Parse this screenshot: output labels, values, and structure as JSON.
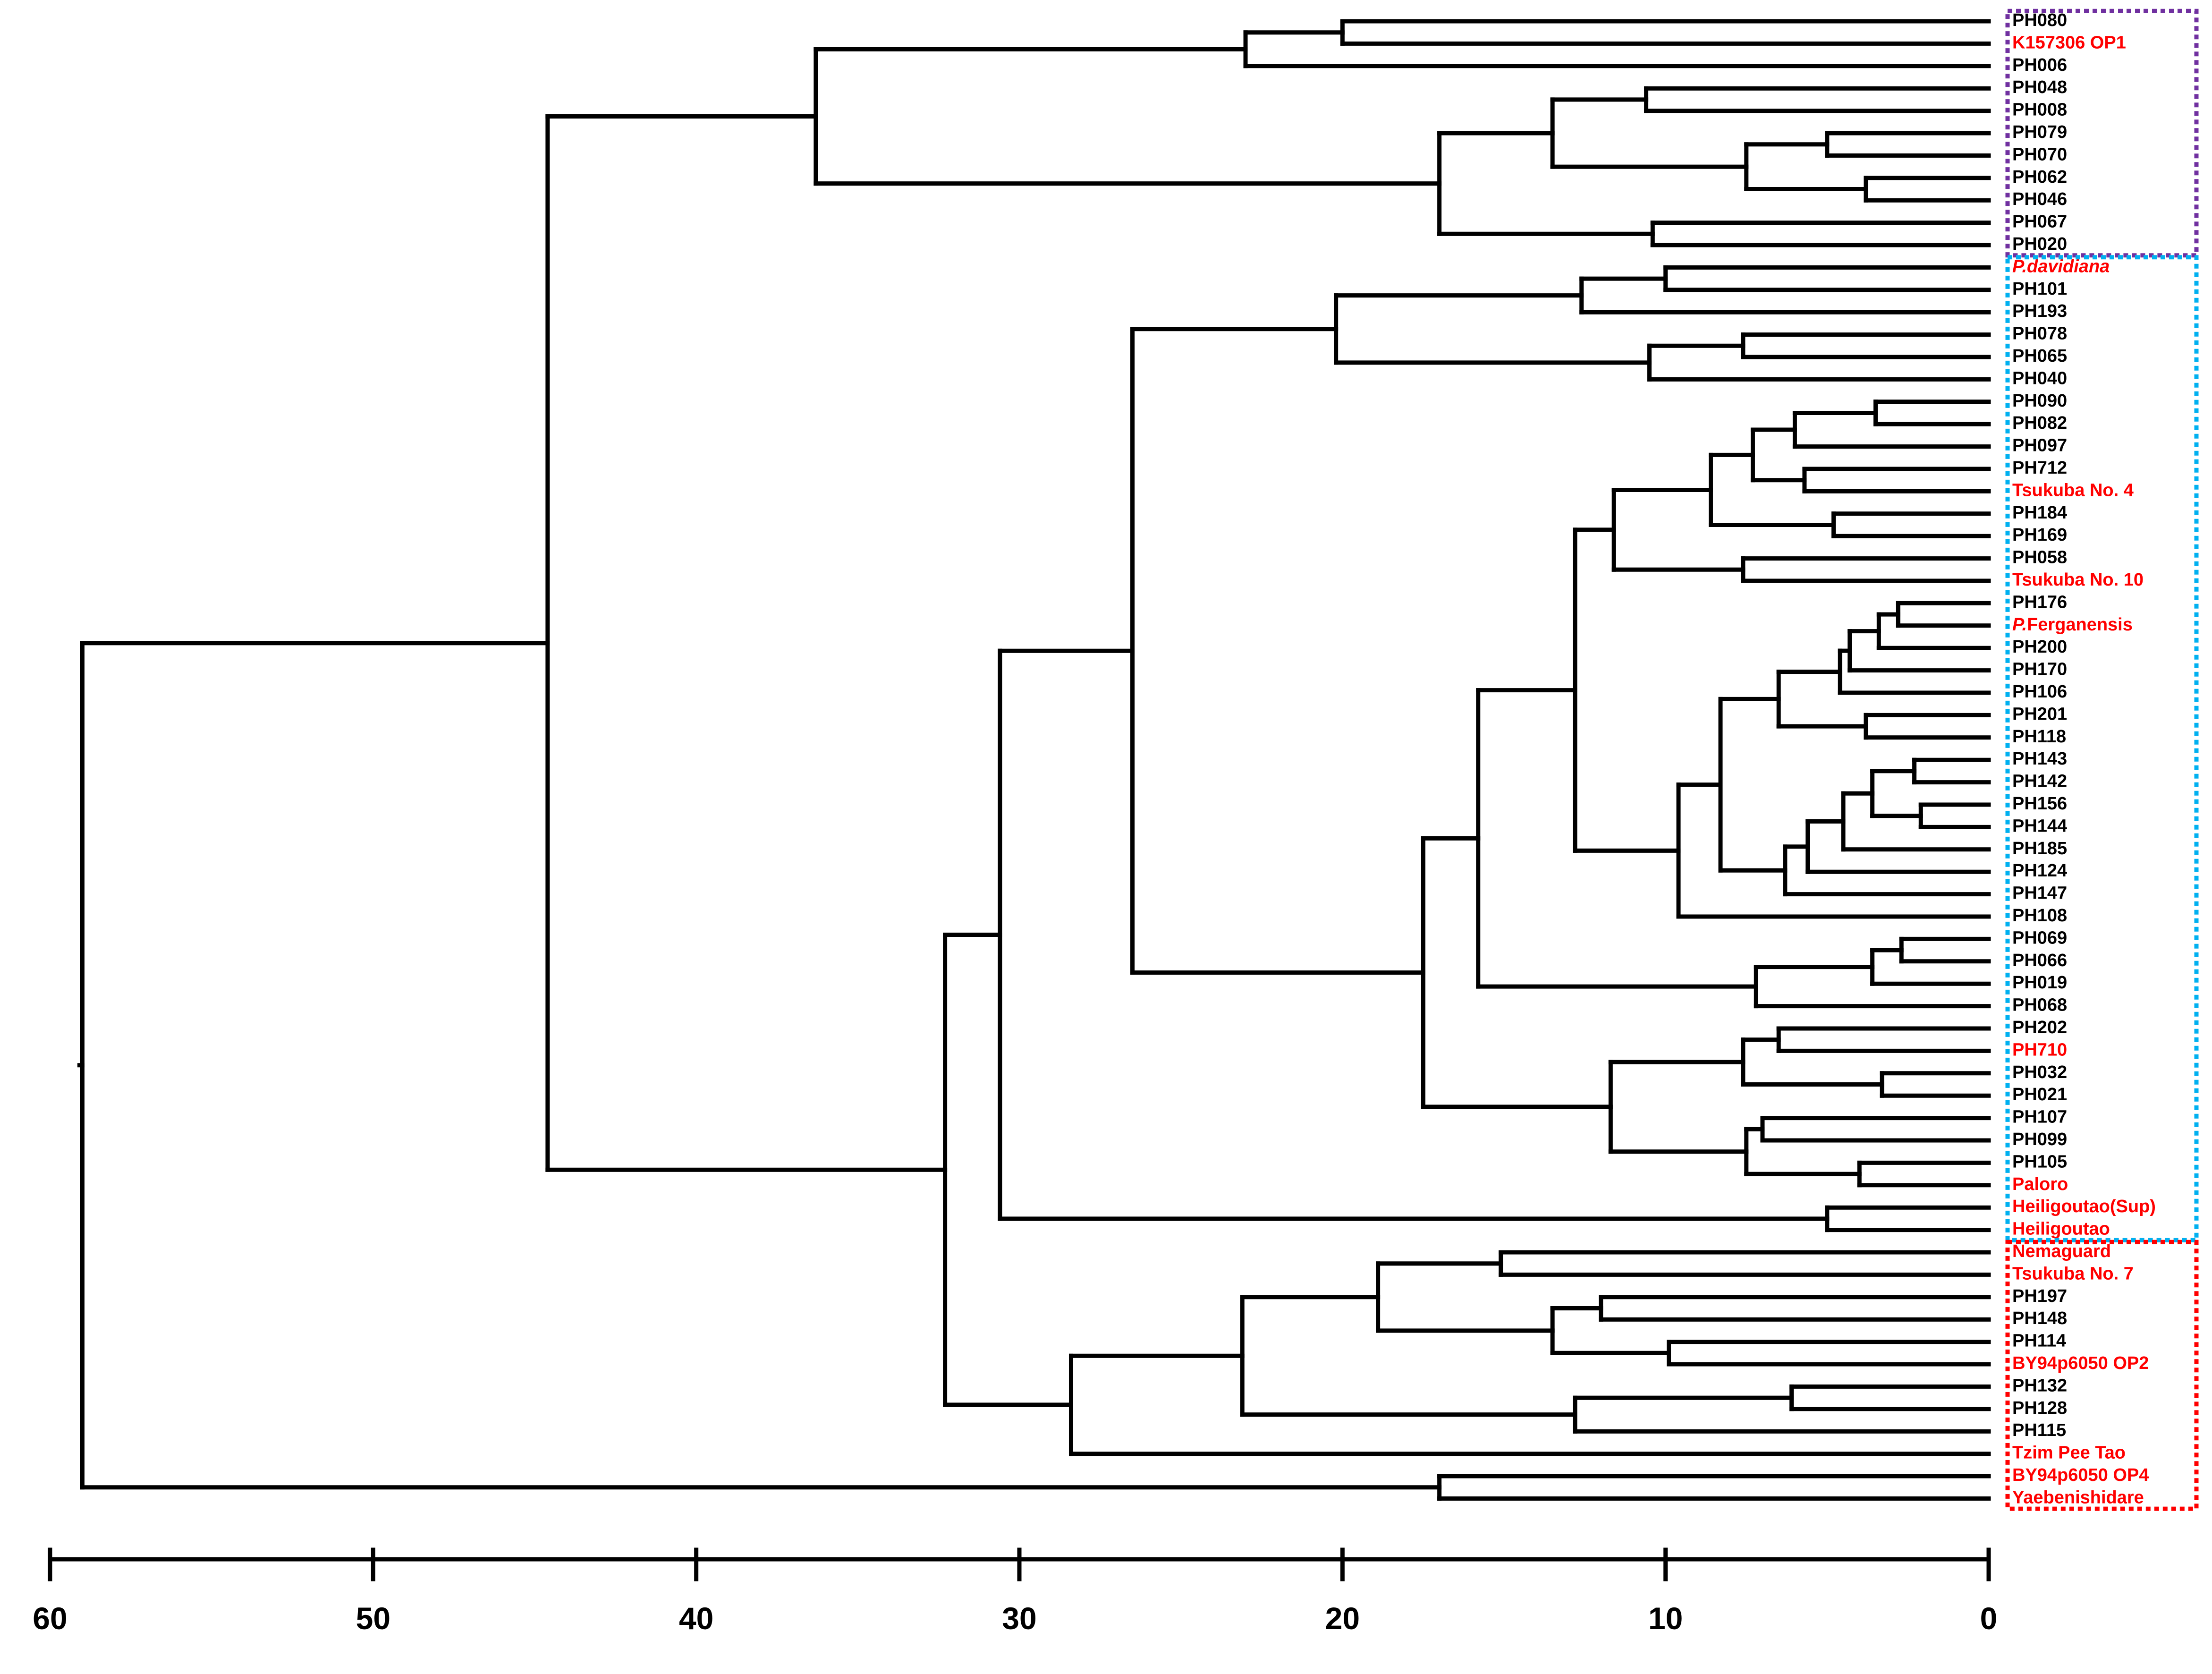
{
  "colors": {
    "black_label": "#000000",
    "red_label": "#ff0000",
    "purple_box": "#7030a0",
    "blue_box": "#00b0f0",
    "red_box": "#ff0000"
  },
  "axis": {
    "ticks": [
      60,
      50,
      40,
      30,
      20,
      10,
      0
    ],
    "tick_labels": [
      "60",
      "50",
      "40",
      "30",
      "20",
      "10",
      "0"
    ],
    "min": 0,
    "max": 60
  },
  "leaves": [
    {
      "label": "PH080",
      "color": "black"
    },
    {
      "label": "K157306 OP1",
      "color": "red"
    },
    {
      "label": "PH006",
      "color": "black"
    },
    {
      "label": "PH048",
      "color": "black"
    },
    {
      "label": "PH008",
      "color": "black"
    },
    {
      "label": "PH079",
      "color": "black"
    },
    {
      "label": "PH070",
      "color": "black"
    },
    {
      "label": "PH062",
      "color": "black"
    },
    {
      "label": "PH046",
      "color": "black"
    },
    {
      "label": "PH067",
      "color": "black"
    },
    {
      "label": "PH020",
      "color": "black"
    },
    {
      "label": "P.davidiana",
      "color": "red",
      "italic": true
    },
    {
      "label": "PH101",
      "color": "black"
    },
    {
      "label": "PH193",
      "color": "black"
    },
    {
      "label": "PH078",
      "color": "black"
    },
    {
      "label": "PH065",
      "color": "black"
    },
    {
      "label": "PH040",
      "color": "black"
    },
    {
      "label": "PH090",
      "color": "black"
    },
    {
      "label": "PH082",
      "color": "black"
    },
    {
      "label": "PH097",
      "color": "black"
    },
    {
      "label": "PH712",
      "color": "black"
    },
    {
      "label": "Tsukuba No. 4",
      "color": "red"
    },
    {
      "label": "PH184",
      "color": "black"
    },
    {
      "label": "PH169",
      "color": "black"
    },
    {
      "label": "PH058",
      "color": "black"
    },
    {
      "label": "Tsukuba No. 10",
      "color": "red"
    },
    {
      "label": "PH176",
      "color": "black"
    },
    {
      "label": "P.Ferganensis",
      "color": "red",
      "italic_prefix": true
    },
    {
      "label": "PH200",
      "color": "black"
    },
    {
      "label": "PH170",
      "color": "black"
    },
    {
      "label": "PH106",
      "color": "black"
    },
    {
      "label": "PH201",
      "color": "black"
    },
    {
      "label": "PH118",
      "color": "black"
    },
    {
      "label": "PH143",
      "color": "black"
    },
    {
      "label": "PH142",
      "color": "black"
    },
    {
      "label": "PH156",
      "color": "black"
    },
    {
      "label": "PH144",
      "color": "black"
    },
    {
      "label": "PH185",
      "color": "black"
    },
    {
      "label": "PH124",
      "color": "black"
    },
    {
      "label": "PH147",
      "color": "black"
    },
    {
      "label": "PH108",
      "color": "black"
    },
    {
      "label": "PH069",
      "color": "black"
    },
    {
      "label": "PH066",
      "color": "black"
    },
    {
      "label": "PH019",
      "color": "black"
    },
    {
      "label": "PH068",
      "color": "black"
    },
    {
      "label": "PH202",
      "color": "black"
    },
    {
      "label": "PH710",
      "color": "red"
    },
    {
      "label": "PH032",
      "color": "black"
    },
    {
      "label": "PH021",
      "color": "black"
    },
    {
      "label": "PH107",
      "color": "black"
    },
    {
      "label": "PH099",
      "color": "black"
    },
    {
      "label": "PH105",
      "color": "black"
    },
    {
      "label": "Paloro",
      "color": "red"
    },
    {
      "label": "Heiligoutao(Sup)",
      "color": "red"
    },
    {
      "label": "Heiligoutao",
      "color": "red"
    },
    {
      "label": "Nemaguard",
      "color": "red"
    },
    {
      "label": "Tsukuba No. 7",
      "color": "red"
    },
    {
      "label": "PH197",
      "color": "black"
    },
    {
      "label": "PH148",
      "color": "black"
    },
    {
      "label": "PH114",
      "color": "black"
    },
    {
      "label": "BY94p6050 OP2",
      "color": "red"
    },
    {
      "label": "PH132",
      "color": "black"
    },
    {
      "label": "PH128",
      "color": "black"
    },
    {
      "label": "PH115",
      "color": "black"
    },
    {
      "label": "Tzim Pee Tao",
      "color": "red"
    },
    {
      "label": "BY94p6050 OP4",
      "color": "red"
    },
    {
      "label": "Yaebenishidare",
      "color": "red"
    }
  ],
  "tree": {
    "h": 59,
    "c": [
      {
        "h": 44.6,
        "c": [
          {
            "h": 36.3,
            "c": [
              {
                "h": 23,
                "c": [
                  {
                    "h": 20,
                    "c": [
                      0,
                      1
                    ]
                  },
                  2
                ]
              },
              {
                "h": 17,
                "c": [
                  {
                    "h": 13.5,
                    "c": [
                      {
                        "h": 10.6,
                        "c": [
                          3,
                          4
                        ]
                      },
                      {
                        "h": 7.5,
                        "c": [
                          {
                            "h": 5,
                            "c": [
                              5,
                              6
                            ]
                          },
                          {
                            "h": 3.8,
                            "c": [
                              7,
                              8
                            ]
                          }
                        ]
                      }
                    ]
                  },
                  {
                    "h": 10.4,
                    "c": [
                      9,
                      10
                    ]
                  }
                ]
              }
            ]
          },
          {
            "h": 32.3,
            "c": [
              {
                "h": 30.6,
                "c": [
                  {
                    "h": 26.5,
                    "c": [
                      {
                        "h": 20.2,
                        "c": [
                          {
                            "h": 12.6,
                            "c": [
                              {
                                "h": 10,
                                "c": [
                                  11,
                                  12
                                ]
                              },
                              13
                            ]
                          },
                          {
                            "h": 10.5,
                            "c": [
                              {
                                "h": 7.6,
                                "c": [
                                  14,
                                  15
                                ]
                              },
                              16
                            ]
                          }
                        ]
                      },
                      {
                        "h": 17.5,
                        "c": [
                          {
                            "h": 15.8,
                            "c": [
                              {
                                "h": 12.8,
                                "c": [
                                  {
                                    "h": 11.6,
                                    "c": [
                                      {
                                        "h": 8.6,
                                        "c": [
                                          {
                                            "h": 7.3,
                                            "c": [
                                              {
                                                "h": 6,
                                                "c": [
                                                  {
                                                    "h": 3.5,
                                                    "c": [
                                                      17,
                                                      18
                                                    ]
                                                  },
                                                  19
                                                ]
                                              },
                                              {
                                                "h": 5.7,
                                                "c": [
                                                  20,
                                                  21
                                                ]
                                              }
                                            ]
                                          },
                                          {
                                            "h": 4.8,
                                            "c": [
                                              22,
                                              23
                                            ]
                                          }
                                        ]
                                      },
                                      {
                                        "h": 7.6,
                                        "c": [
                                          24,
                                          25
                                        ]
                                      }
                                    ]
                                  },
                                  {
                                    "h": 9.6,
                                    "c": [
                                      {
                                        "h": 8.3,
                                        "c": [
                                          {
                                            "h": 6.5,
                                            "c": [
                                              {
                                                "h": 4.6,
                                                "c": [
                                                  {
                                                    "h": 4.3,
                                                    "c": [
                                                      {
                                                        "h": 3.4,
                                                        "c": [
                                                          {
                                                            "h": 2.8,
                                                            "c": [
                                                              26,
                                                              27
                                                            ]
                                                          },
                                                          28
                                                        ]
                                                      },
                                                      29
                                                    ]
                                                  },
                                                  30
                                                ]
                                              },
                                              {
                                                "h": 3.8,
                                                "c": [
                                                  31,
                                                  32
                                                ]
                                              }
                                            ]
                                          },
                                          {
                                            "h": 6.3,
                                            "c": [
                                              {
                                                "h": 5.6,
                                                "c": [
                                                  {
                                                    "h": 4.5,
                                                    "c": [
                                                      {
                                                        "h": 3.6,
                                                        "c": [
                                                          {
                                                            "h": 2.3,
                                                            "c": [
                                                              33,
                                                              34
                                                            ]
                                                          },
                                                          {
                                                            "h": 2.1,
                                                            "c": [
                                                              35,
                                                              36
                                                            ]
                                                          }
                                                        ]
                                                      },
                                                      37
                                                    ]
                                                  },
                                                  38
                                                ]
                                              },
                                              39
                                            ]
                                          }
                                        ]
                                      },
                                      40
                                    ]
                                  }
                                ]
                              },
                              {
                                "h": 7.2,
                                "c": [
                                  {
                                    "h": 3.6,
                                    "c": [
                                      {
                                        "h": 2.7,
                                        "c": [
                                          41,
                                          42
                                        ]
                                      },
                                      43
                                    ]
                                  },
                                  44
                                ]
                              }
                            ]
                          },
                          {
                            "h": 11.7,
                            "c": [
                              {
                                "h": 7.6,
                                "c": [
                                  {
                                    "h": 6.5,
                                    "c": [
                                      45,
                                      46
                                    ]
                                  },
                                  {
                                    "h": 3.3,
                                    "c": [
                                      47,
                                      48
                                    ]
                                  }
                                ]
                              },
                              {
                                "h": 7.5,
                                "c": [
                                  {
                                    "h": 7,
                                    "c": [
                                      49,
                                      50
                                    ]
                                  },
                                  {
                                    "h": 4,
                                    "c": [
                                      51,
                                      52
                                    ]
                                  }
                                ]
                              }
                            ]
                          }
                        ]
                      }
                    ]
                  },
                  {
                    "h": 5,
                    "c": [
                      53,
                      54
                    ]
                  }
                ]
              },
              {
                "h": 28.4,
                "c": [
                  {
                    "h": 23.1,
                    "c": [
                      {
                        "h": 18.9,
                        "c": [
                          {
                            "h": 15.1,
                            "c": [
                              55,
                              56
                            ]
                          },
                          {
                            "h": 13.5,
                            "c": [
                              {
                                "h": 12,
                                "c": [
                                  57,
                                  58
                                ]
                              },
                              {
                                "h": 9.9,
                                "c": [
                                  59,
                                  60
                                ]
                              }
                            ]
                          }
                        ]
                      },
                      {
                        "h": 12.8,
                        "c": [
                          {
                            "h": 6.1,
                            "c": [
                              61,
                              62
                            ]
                          },
                          63
                        ]
                      }
                    ]
                  },
                  64
                ]
              }
            ]
          }
        ]
      },
      {
        "h": 17,
        "c": [
          65,
          66
        ]
      }
    ]
  },
  "groups": [
    {
      "name": "group-purple",
      "first": 0,
      "last": 10,
      "color": "purple"
    },
    {
      "name": "group-blue",
      "first": 11,
      "last": 54,
      "color": "blue"
    },
    {
      "name": "group-red",
      "first": 55,
      "last": 66,
      "color": "red"
    }
  ]
}
